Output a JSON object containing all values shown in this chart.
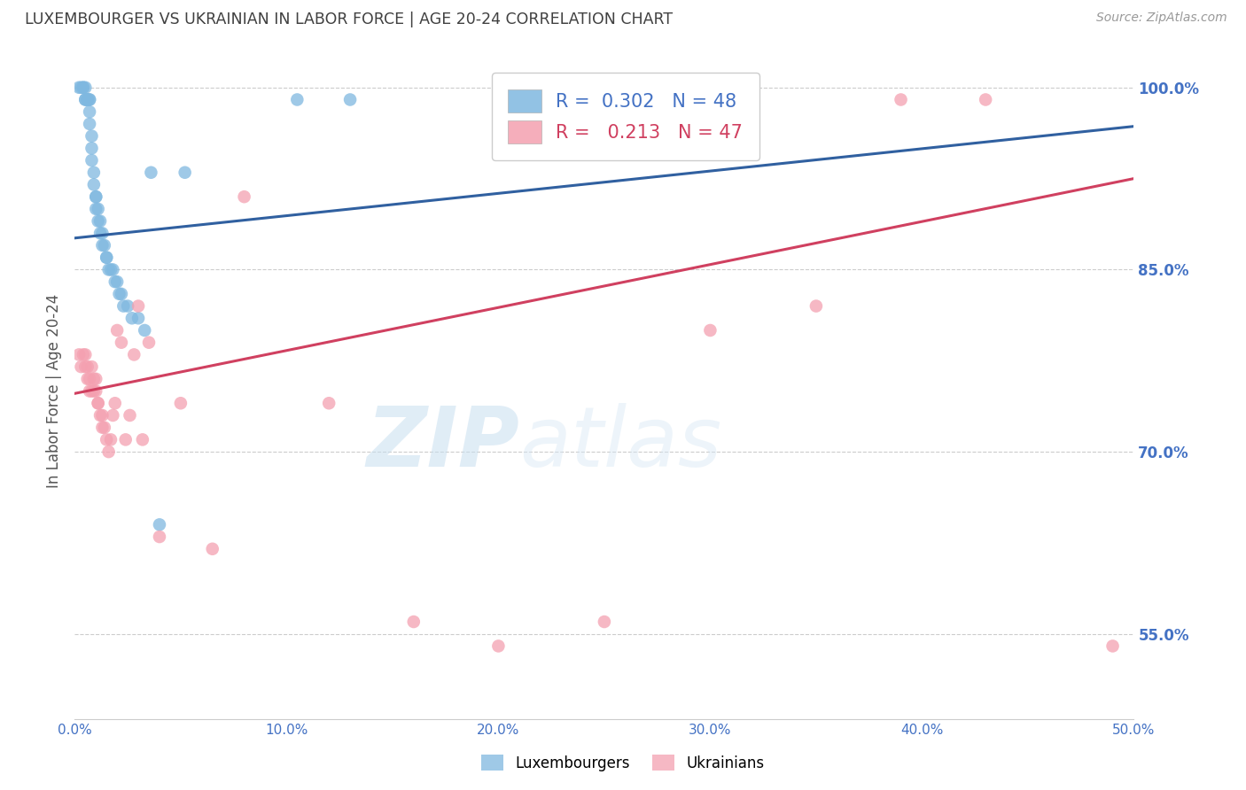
{
  "title": "LUXEMBOURGER VS UKRAINIAN IN LABOR FORCE | AGE 20-24 CORRELATION CHART",
  "source": "Source: ZipAtlas.com",
  "ylabel": "In Labor Force | Age 20-24",
  "xlim": [
    0.0,
    0.5
  ],
  "ylim": [
    0.48,
    1.02
  ],
  "xticks": [
    0.0,
    0.1,
    0.2,
    0.3,
    0.4,
    0.5
  ],
  "yticks": [
    0.55,
    0.7,
    0.85,
    1.0
  ],
  "ytick_labels": [
    "55.0%",
    "70.0%",
    "85.0%",
    "100.0%"
  ],
  "xtick_labels": [
    "0.0%",
    "10.0%",
    "20.0%",
    "30.0%",
    "40.0%",
    "50.0%"
  ],
  "blue_R": 0.302,
  "blue_N": 48,
  "pink_R": 0.213,
  "pink_N": 47,
  "blue_color": "#7fb8e0",
  "pink_color": "#f4a0b0",
  "blue_line_color": "#3060a0",
  "pink_line_color": "#d04060",
  "legend_label_blue": "Luxembourgers",
  "legend_label_pink": "Ukrainians",
  "blue_points_x": [
    0.002,
    0.003,
    0.004,
    0.004,
    0.005,
    0.005,
    0.005,
    0.006,
    0.006,
    0.006,
    0.007,
    0.007,
    0.007,
    0.007,
    0.008,
    0.008,
    0.008,
    0.009,
    0.009,
    0.01,
    0.01,
    0.01,
    0.011,
    0.011,
    0.012,
    0.012,
    0.013,
    0.013,
    0.014,
    0.015,
    0.015,
    0.016,
    0.017,
    0.018,
    0.019,
    0.02,
    0.021,
    0.022,
    0.023,
    0.025,
    0.027,
    0.03,
    0.033,
    0.036,
    0.04,
    0.052,
    0.105,
    0.13
  ],
  "blue_points_y": [
    1.0,
    1.0,
    1.0,
    1.0,
    1.0,
    0.99,
    0.99,
    0.99,
    0.99,
    0.99,
    0.99,
    0.99,
    0.98,
    0.97,
    0.96,
    0.95,
    0.94,
    0.93,
    0.92,
    0.91,
    0.91,
    0.9,
    0.9,
    0.89,
    0.89,
    0.88,
    0.88,
    0.87,
    0.87,
    0.86,
    0.86,
    0.85,
    0.85,
    0.85,
    0.84,
    0.84,
    0.83,
    0.83,
    0.82,
    0.82,
    0.81,
    0.81,
    0.8,
    0.93,
    0.64,
    0.93,
    0.99,
    0.99
  ],
  "pink_points_x": [
    0.002,
    0.003,
    0.004,
    0.005,
    0.005,
    0.006,
    0.006,
    0.007,
    0.007,
    0.008,
    0.008,
    0.009,
    0.009,
    0.01,
    0.01,
    0.011,
    0.011,
    0.012,
    0.013,
    0.013,
    0.014,
    0.015,
    0.016,
    0.017,
    0.018,
    0.019,
    0.02,
    0.022,
    0.024,
    0.026,
    0.028,
    0.03,
    0.032,
    0.035,
    0.04,
    0.05,
    0.065,
    0.08,
    0.12,
    0.16,
    0.2,
    0.25,
    0.3,
    0.35,
    0.39,
    0.43,
    0.49
  ],
  "pink_points_y": [
    0.78,
    0.77,
    0.78,
    0.78,
    0.77,
    0.77,
    0.76,
    0.76,
    0.75,
    0.75,
    0.77,
    0.76,
    0.75,
    0.76,
    0.75,
    0.74,
    0.74,
    0.73,
    0.72,
    0.73,
    0.72,
    0.71,
    0.7,
    0.71,
    0.73,
    0.74,
    0.8,
    0.79,
    0.71,
    0.73,
    0.78,
    0.82,
    0.71,
    0.79,
    0.63,
    0.74,
    0.62,
    0.91,
    0.74,
    0.56,
    0.54,
    0.56,
    0.8,
    0.82,
    0.99,
    0.99,
    0.54
  ],
  "watermark_zip": "ZIP",
  "watermark_atlas": "atlas",
  "background_color": "#ffffff",
  "grid_color": "#cccccc",
  "tick_color": "#4472c4",
  "title_color": "#404040"
}
